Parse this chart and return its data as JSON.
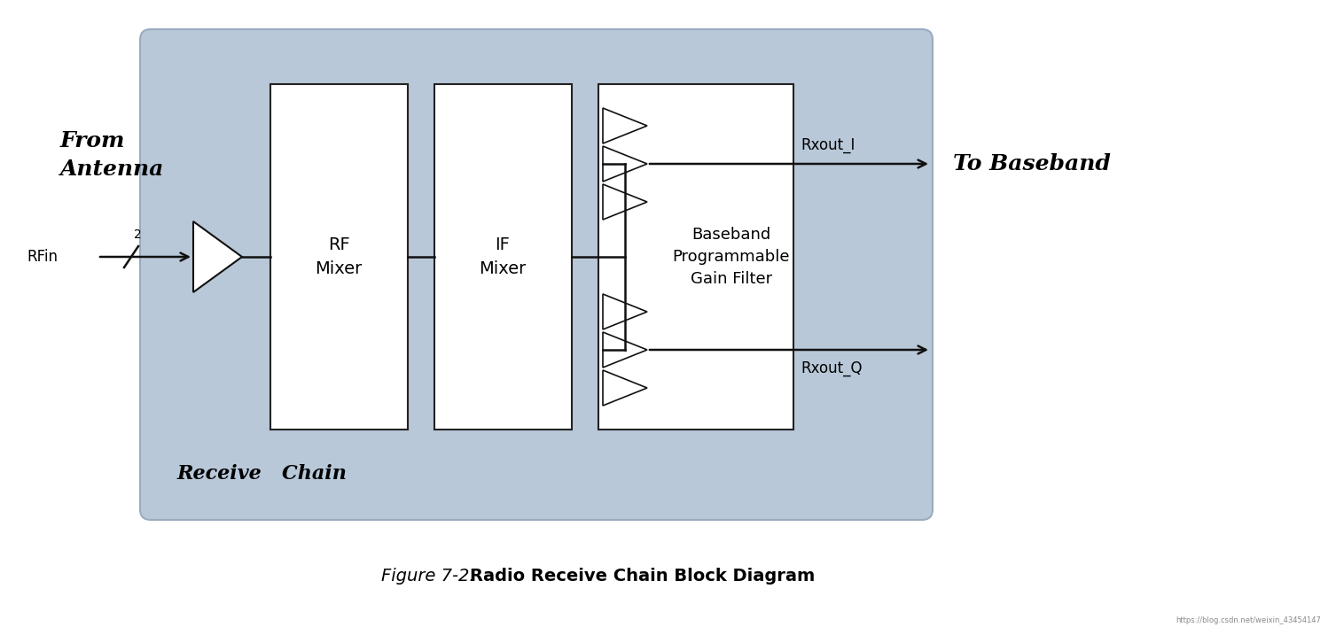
{
  "bg_color": "#ffffff",
  "box_fill": "#b8c8d8",
  "inner_box_fill": "#ffffff",
  "text_color": "#000000",
  "title_italic": "Figure 7-2.",
  "title_bold": "Radio Receive Chain Block Diagram",
  "from_antenna": "From\nAntenna",
  "to_baseband": "To Baseband",
  "rfin_label": "RFin",
  "rf_mixer_label": "RF\nMixer",
  "if_mixer_label": "IF\nMixer",
  "bb_label": "Baseband\nProgrammable\nGain Filter",
  "rxout_i": "Rxout_I",
  "rxout_q": "Rxout_Q",
  "receive_chain": "Receive   Chain",
  "num_label": "2",
  "url": "https://blog.csdn.net/weixin_43454147"
}
